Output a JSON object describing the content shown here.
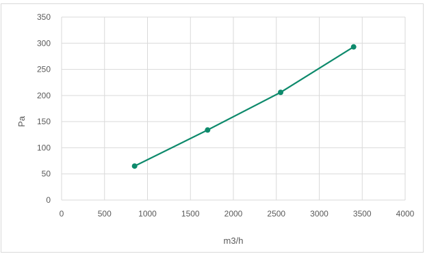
{
  "chart_data": {
    "type": "line",
    "title": "",
    "xlabel": "m3/h",
    "ylabel": "Pa",
    "xlim": [
      0,
      4000
    ],
    "ylim": [
      0,
      350
    ],
    "x_ticks": [
      "0",
      "500",
      "1000",
      "1500",
      "2000",
      "2500",
      "3000",
      "3500",
      "4000"
    ],
    "y_ticks": [
      "0",
      "50",
      "100",
      "150",
      "200",
      "250",
      "300",
      "350"
    ],
    "grid": true,
    "legend": "none",
    "series": [
      {
        "color": "#0e8a6c",
        "x": [
          850,
          1700,
          2550,
          3400
        ],
        "y": [
          65,
          134,
          206,
          293
        ]
      }
    ]
  }
}
